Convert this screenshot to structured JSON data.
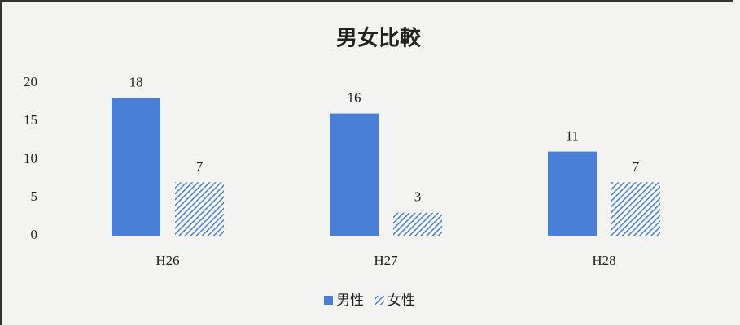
{
  "chart_data": {
    "type": "bar",
    "title": "男女比較",
    "categories": [
      "H26",
      "H27",
      "H28"
    ],
    "series": [
      {
        "name": "男性",
        "color": "#4a7fd8",
        "values": [
          18,
          16,
          11
        ]
      },
      {
        "name": "女性",
        "color": "#4a7fd8",
        "hatch": true,
        "values": [
          7,
          3,
          7
        ]
      }
    ],
    "ylim": [
      0,
      20
    ],
    "yticks": [
      0,
      5,
      10,
      15,
      20
    ],
    "grid": false,
    "legend": "bottom"
  }
}
